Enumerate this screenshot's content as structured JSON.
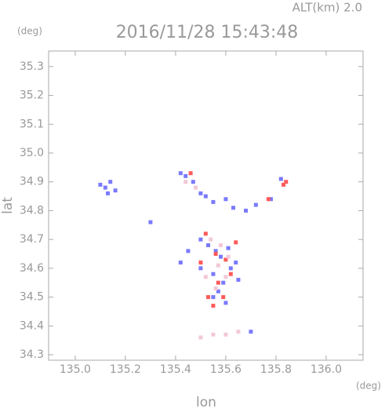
{
  "chart_data": {
    "type": "scatter",
    "title": "2016/11/28 15:43:48",
    "subtitle": "ALT(km)  2.0",
    "x_label": "lon",
    "y_label": "lat",
    "x_unit": "(deg)",
    "y_unit": "(deg)",
    "xlim": [
      134.894,
      136.147
    ],
    "ylim": [
      34.281,
      35.354
    ],
    "xticks": [
      {
        "value": 135,
        "label": "135.0"
      },
      135.2,
      135.4,
      135.6,
      135.8,
      {
        "value": 136,
        "label": "136.0"
      }
    ],
    "yticks": [
      34.3,
      34.4,
      34.5,
      34.6,
      34.7,
      34.8,
      34.9,
      {
        "value": 35,
        "label": "35.0"
      },
      35.1,
      35.2,
      35.3
    ],
    "series": [
      {
        "color": "#7a7aff",
        "x": [
          135.1,
          135.12,
          135.14,
          135.16,
          135.13,
          135.42,
          135.44,
          135.47,
          135.5,
          135.52,
          135.55,
          135.6,
          135.63,
          135.68,
          135.72,
          135.5,
          135.53,
          135.56,
          135.58,
          135.61,
          135.64,
          135.55,
          135.59,
          135.62,
          135.57,
          135.45,
          135.42,
          135.5,
          135.55,
          135.6,
          135.65,
          135.7,
          135.3,
          135.78,
          135.82
        ],
        "y": [
          34.89,
          34.88,
          34.9,
          34.87,
          34.86,
          34.93,
          34.92,
          34.9,
          34.86,
          34.85,
          34.83,
          34.84,
          34.81,
          34.8,
          34.82,
          34.7,
          34.68,
          34.66,
          34.64,
          34.67,
          34.62,
          34.58,
          34.55,
          34.6,
          34.52,
          34.66,
          34.62,
          34.6,
          34.5,
          34.48,
          34.56,
          34.38,
          34.76,
          34.84,
          34.91
        ],
        "values": [
          1,
          1,
          1,
          1,
          1,
          1,
          1,
          1,
          1,
          1,
          1,
          1,
          1,
          1,
          1,
          1,
          1,
          1,
          1,
          1,
          1,
          1,
          1,
          1,
          1,
          1,
          1,
          1,
          1,
          1,
          1,
          1,
          1,
          1,
          1
        ]
      },
      {
        "color": "#ff5a5a",
        "x": [
          135.46,
          135.83,
          135.84,
          135.77,
          135.52,
          135.56,
          135.6,
          135.62,
          135.57,
          135.53,
          135.59,
          135.55,
          135.64,
          135.5
        ],
        "y": [
          34.93,
          34.89,
          34.9,
          34.84,
          34.72,
          34.65,
          34.63,
          34.58,
          34.55,
          34.5,
          34.5,
          34.47,
          34.69,
          34.62
        ],
        "values": [
          1,
          1,
          1,
          1,
          1,
          1,
          1,
          1,
          1,
          1,
          1,
          1,
          1,
          1
        ]
      },
      {
        "color": "#f2c8d8",
        "x": [
          135.54,
          135.58,
          135.57,
          135.61,
          135.52,
          135.56,
          135.6,
          135.48,
          135.44,
          135.5,
          135.55,
          135.6,
          135.65
        ],
        "y": [
          34.7,
          34.68,
          34.61,
          34.64,
          34.57,
          34.53,
          34.57,
          34.88,
          34.9,
          34.36,
          34.37,
          34.37,
          34.38
        ],
        "values": [
          1,
          1,
          1,
          1,
          1,
          1,
          1,
          1,
          1,
          1,
          1,
          1,
          1
        ]
      }
    ]
  }
}
